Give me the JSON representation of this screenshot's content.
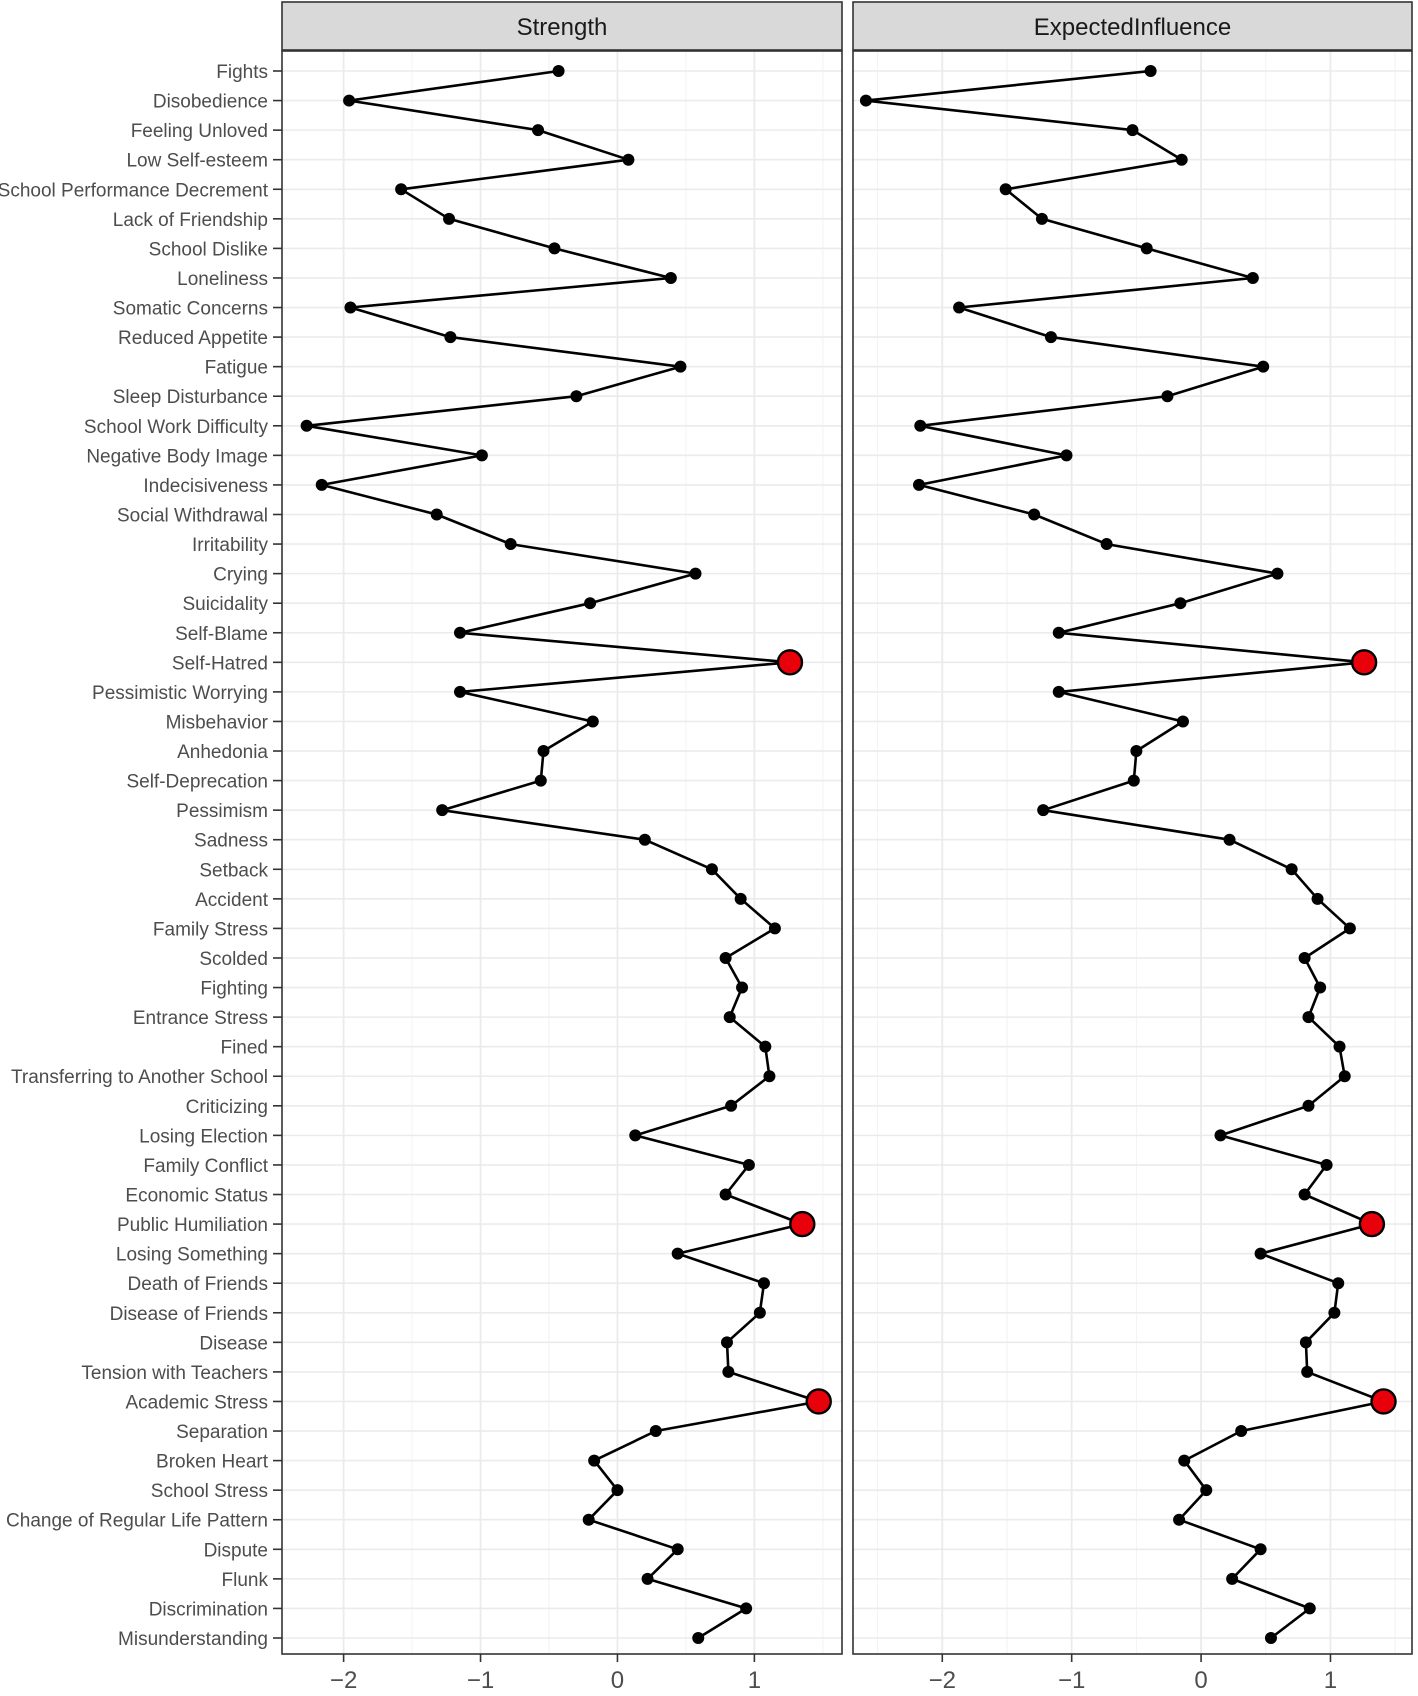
{
  "chart_data": {
    "type": "line",
    "categories": [
      "Fights",
      "Disobedience",
      "Feeling Unloved",
      "Low Self-esteem",
      "School Performance Decrement",
      "Lack of Friendship",
      "School Dislike",
      "Loneliness",
      "Somatic Concerns",
      "Reduced Appetite",
      "Fatigue",
      "Sleep Disturbance",
      "School Work Difficulty",
      "Negative Body Image",
      "Indecisiveness",
      "Social Withdrawal",
      "Irritability",
      "Crying",
      "Suicidality",
      "Self-Blame",
      "Self-Hatred",
      "Pessimistic Worrying",
      "Misbehavior",
      "Anhedonia",
      "Self-Deprecation",
      "Pessimism",
      "Sadness",
      "Setback",
      "Accident",
      "Family Stress",
      "Scolded",
      "Fighting",
      "Entrance Stress",
      "Fined",
      "Transferring to Another School",
      "Criticizing",
      "Losing Election",
      "Family Conflict",
      "Economic Status",
      "Public Humiliation",
      "Losing Something",
      "Death of Friends",
      "Disease of Friends",
      "Disease",
      "Tension with Teachers",
      "Academic Stress",
      "Separation",
      "Broken Heart",
      "School Stress",
      "Change of Regular Life Pattern",
      "Dispute",
      "Flunk",
      "Discrimination",
      "Misunderstanding"
    ],
    "panels": [
      {
        "title": "Strength",
        "xlim": [
          -2.45,
          1.64
        ],
        "ticks": [
          -2,
          -1,
          0,
          1
        ],
        "tick_labels": [
          "−2",
          "−1",
          "0",
          "1"
        ],
        "values": [
          -0.43,
          -1.96,
          -0.58,
          0.08,
          -1.58,
          -1.23,
          -0.46,
          0.39,
          -1.95,
          -1.22,
          0.46,
          -0.3,
          -2.27,
          -0.99,
          -2.16,
          -1.32,
          -0.78,
          0.57,
          -0.2,
          -1.15,
          1.26,
          -1.15,
          -0.18,
          -0.54,
          -0.56,
          -1.28,
          0.2,
          0.69,
          0.9,
          1.15,
          0.79,
          0.91,
          0.82,
          1.08,
          1.11,
          0.83,
          0.13,
          0.96,
          0.79,
          1.35,
          0.44,
          1.07,
          1.04,
          0.8,
          0.81,
          1.47,
          0.28,
          -0.17,
          0.0,
          -0.21,
          0.44,
          0.22,
          0.94,
          0.59
        ],
        "highlighted": [
          "Self-Hatred",
          "Public Humiliation",
          "Academic Stress"
        ]
      },
      {
        "title": "ExpectedInfluence",
        "xlim": [
          -2.69,
          1.63
        ],
        "ticks": [
          -2,
          -1,
          0,
          1
        ],
        "tick_labels": [
          "−2",
          "−1",
          "0",
          "1"
        ],
        "values": [
          -0.39,
          -2.59,
          -0.53,
          -0.15,
          -1.51,
          -1.23,
          -0.42,
          0.4,
          -1.87,
          -1.16,
          0.48,
          -0.26,
          -2.17,
          -1.04,
          -2.18,
          -1.29,
          -0.73,
          0.59,
          -0.16,
          -1.1,
          1.26,
          -1.1,
          -0.14,
          -0.5,
          -0.52,
          -1.22,
          0.22,
          0.7,
          0.9,
          1.15,
          0.8,
          0.92,
          0.83,
          1.07,
          1.11,
          0.83,
          0.15,
          0.97,
          0.8,
          1.32,
          0.46,
          1.06,
          1.03,
          0.81,
          0.82,
          1.41,
          0.31,
          -0.13,
          0.04,
          -0.17,
          0.46,
          0.24,
          0.84,
          0.54
        ],
        "highlighted": [
          "Self-Hatred",
          "Public Humiliation",
          "Academic Stress"
        ]
      }
    ],
    "grid": true,
    "legend": "none"
  },
  "colors": {
    "line": "#000000",
    "point": "#000000",
    "highlight_fill": "#e8000b",
    "strip_bg": "#d9d9d9",
    "grid": "#ebebeb",
    "border": "#333333",
    "text": "#4d4d4d"
  }
}
